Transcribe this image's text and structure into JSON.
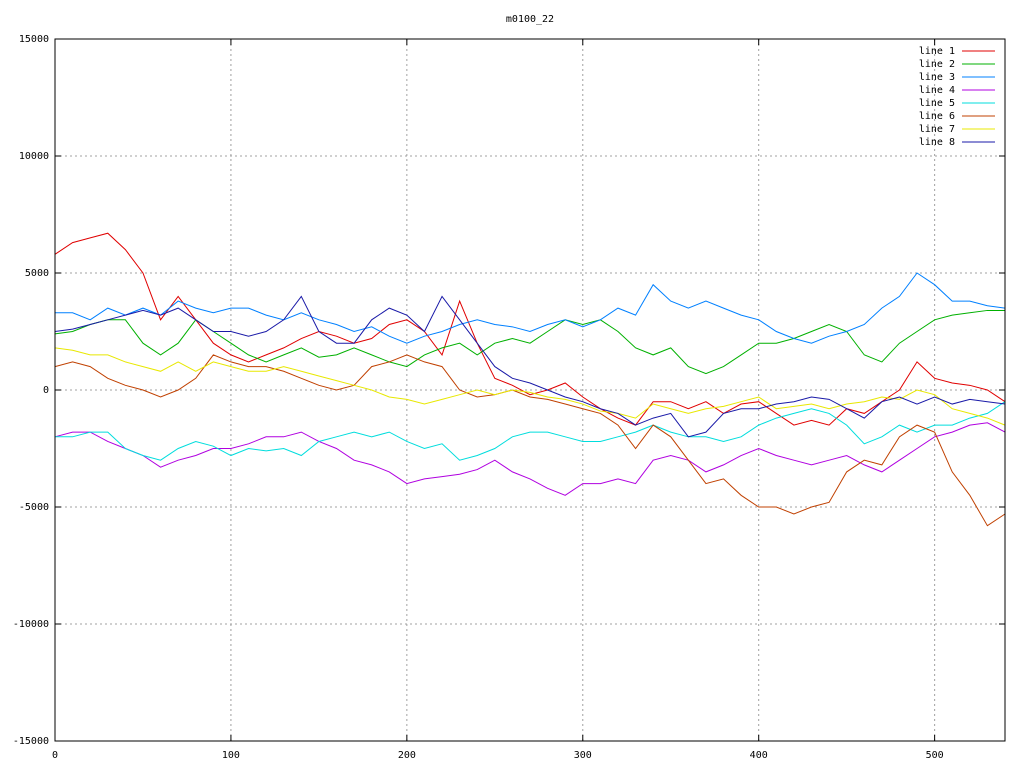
{
  "chart_data": {
    "type": "line",
    "title": "m0100_22",
    "x": [
      0,
      10,
      20,
      30,
      40,
      50,
      60,
      70,
      80,
      90,
      100,
      110,
      120,
      130,
      140,
      150,
      160,
      170,
      180,
      190,
      200,
      210,
      220,
      230,
      240,
      250,
      260,
      270,
      280,
      290,
      300,
      310,
      320,
      330,
      340,
      350,
      360,
      370,
      380,
      390,
      400,
      410,
      420,
      430,
      440,
      450,
      460,
      470,
      480,
      490,
      500,
      510,
      520,
      530,
      540
    ],
    "xlim": [
      0,
      540
    ],
    "xticks": [
      0,
      100,
      200,
      300,
      400,
      500
    ],
    "ylim": [
      -15000,
      15000
    ],
    "yticks": [
      -15000,
      -10000,
      -5000,
      0,
      5000,
      10000,
      15000
    ],
    "grid": true,
    "legend": "top-right",
    "series": [
      {
        "name": "line 1",
        "color": "#e00000",
        "values": [
          5800,
          6300,
          6500,
          6700,
          6000,
          5000,
          3000,
          4000,
          3000,
          2000,
          1500,
          1200,
          1500,
          1800,
          2200,
          2500,
          2300,
          2000,
          2200,
          2800,
          3000,
          2500,
          1500,
          3800,
          2000,
          500,
          200,
          -200,
          0,
          300,
          -300,
          -800,
          -1200,
          -1500,
          -500,
          -500,
          -800,
          -500,
          -1000,
          -600,
          -500,
          -1000,
          -1500,
          -1300,
          -1500,
          -800,
          -1000,
          -500,
          0,
          1200,
          500,
          300,
          200,
          0,
          -500
        ]
      },
      {
        "name": "line 2",
        "color": "#00b000",
        "values": [
          2400,
          2500,
          2800,
          3000,
          3000,
          2000,
          1500,
          2000,
          3000,
          2500,
          2000,
          1500,
          1200,
          1500,
          1800,
          1400,
          1500,
          1800,
          1500,
          1200,
          1000,
          1500,
          1800,
          2000,
          1500,
          2000,
          2200,
          2000,
          2500,
          3000,
          2800,
          3000,
          2500,
          1800,
          1500,
          1800,
          1000,
          700,
          1000,
          1500,
          2000,
          2000,
          2200,
          2500,
          2800,
          2500,
          1500,
          1200,
          2000,
          2500,
          3000,
          3200,
          3300,
          3400,
          3400
        ]
      },
      {
        "name": "line 3",
        "color": "#0080ff",
        "values": [
          3300,
          3300,
          3000,
          3500,
          3200,
          3500,
          3200,
          3800,
          3500,
          3300,
          3500,
          3500,
          3200,
          3000,
          3300,
          3000,
          2800,
          2500,
          2700,
          2300,
          2000,
          2300,
          2500,
          2800,
          3000,
          2800,
          2700,
          2500,
          2800,
          3000,
          2700,
          3000,
          3500,
          3200,
          4500,
          3800,
          3500,
          3800,
          3500,
          3200,
          3000,
          2500,
          2200,
          2000,
          2300,
          2500,
          2800,
          3500,
          4000,
          5000,
          4500,
          3800,
          3800,
          3600,
          3500
        ]
      },
      {
        "name": "line 4",
        "color": "#b000e0",
        "values": [
          -2000,
          -1800,
          -1800,
          -2200,
          -2500,
          -2800,
          -3300,
          -3000,
          -2800,
          -2500,
          -2500,
          -2300,
          -2000,
          -2000,
          -1800,
          -2200,
          -2500,
          -3000,
          -3200,
          -3500,
          -4000,
          -3800,
          -3700,
          -3600,
          -3400,
          -3000,
          -3500,
          -3800,
          -4200,
          -4500,
          -4000,
          -4000,
          -3800,
          -4000,
          -3000,
          -2800,
          -3000,
          -3500,
          -3200,
          -2800,
          -2500,
          -2800,
          -3000,
          -3200,
          -3000,
          -2800,
          -3200,
          -3500,
          -3000,
          -2500,
          -2000,
          -1800,
          -1500,
          -1400,
          -1800
        ]
      },
      {
        "name": "line 5",
        "color": "#00dddd",
        "values": [
          -2000,
          -2000,
          -1800,
          -1800,
          -2500,
          -2800,
          -3000,
          -2500,
          -2200,
          -2400,
          -2800,
          -2500,
          -2600,
          -2500,
          -2800,
          -2200,
          -2000,
          -1800,
          -2000,
          -1800,
          -2200,
          -2500,
          -2300,
          -3000,
          -2800,
          -2500,
          -2000,
          -1800,
          -1800,
          -2000,
          -2200,
          -2200,
          -2000,
          -1800,
          -1500,
          -1800,
          -2000,
          -2000,
          -2200,
          -2000,
          -1500,
          -1200,
          -1000,
          -800,
          -1000,
          -1500,
          -2300,
          -2000,
          -1500,
          -1800,
          -1500,
          -1500,
          -1200,
          -1000,
          -500
        ]
      },
      {
        "name": "line 6",
        "color": "#c04000",
        "values": [
          1000,
          1200,
          1000,
          500,
          200,
          0,
          -300,
          0,
          500,
          1500,
          1200,
          1000,
          1000,
          800,
          500,
          200,
          0,
          200,
          1000,
          1200,
          1500,
          1200,
          1000,
          0,
          -300,
          -200,
          0,
          -300,
          -400,
          -600,
          -800,
          -1000,
          -1500,
          -2500,
          -1500,
          -2000,
          -3000,
          -4000,
          -3800,
          -4500,
          -5000,
          -5000,
          -5300,
          -5000,
          -4800,
          -3500,
          -3000,
          -3200,
          -2000,
          -1500,
          -1800,
          -3500,
          -4500,
          -5800,
          -5300
        ]
      },
      {
        "name": "line 7",
        "color": "#e8e800",
        "values": [
          1800,
          1700,
          1500,
          1500,
          1200,
          1000,
          800,
          1200,
          800,
          1200,
          1000,
          800,
          800,
          1000,
          800,
          600,
          400,
          200,
          0,
          -300,
          -400,
          -600,
          -400,
          -200,
          0,
          -200,
          0,
          -100,
          -300,
          -400,
          -600,
          -900,
          -1000,
          -1200,
          -600,
          -800,
          -1000,
          -800,
          -700,
          -500,
          -300,
          -800,
          -700,
          -600,
          -800,
          -600,
          -500,
          -300,
          -400,
          0,
          -200,
          -800,
          -1000,
          -1200,
          -1500
        ]
      },
      {
        "name": "line 8",
        "color": "#1a1aa8",
        "values": [
          2500,
          2600,
          2800,
          3000,
          3200,
          3400,
          3200,
          3500,
          3000,
          2500,
          2500,
          2300,
          2500,
          3000,
          4000,
          2500,
          2000,
          2000,
          3000,
          3500,
          3200,
          2500,
          4000,
          3000,
          2000,
          1000,
          500,
          300,
          0,
          -300,
          -500,
          -800,
          -1000,
          -1500,
          -1200,
          -1000,
          -2000,
          -1800,
          -1000,
          -800,
          -800,
          -600,
          -500,
          -300,
          -400,
          -800,
          -1200,
          -500,
          -300,
          -600,
          -300,
          -600,
          -400,
          -500,
          -600
        ]
      }
    ]
  }
}
